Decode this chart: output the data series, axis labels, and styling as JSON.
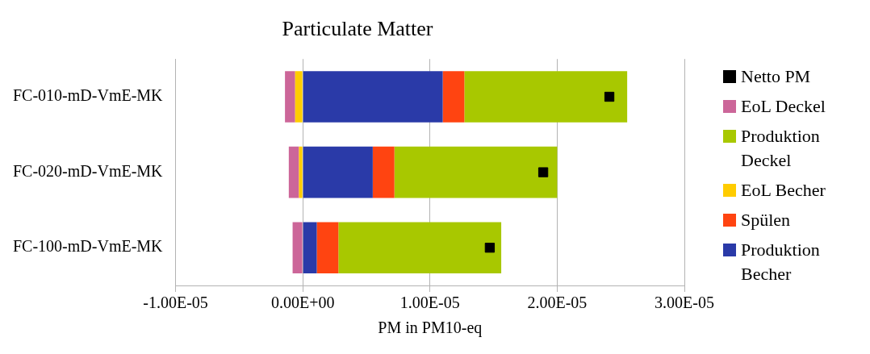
{
  "chart_data": {
    "type": "bar",
    "title": "Particulate Matter",
    "xlabel": "PM in PM10-eq",
    "orientation": "horizontal",
    "stacked": true,
    "grid": "x",
    "legend": "right",
    "categories": [
      "FC-010-mD-VmE-MK",
      "FC-020-mD-VmE-MK",
      "FC-100-mD-VmE-MK"
    ],
    "xlim": [
      -1e-05,
      3e-05
    ],
    "xticks": [
      {
        "value": -1e-05,
        "label": "-1.00E-05"
      },
      {
        "value": 0,
        "label": "0.00E+00"
      },
      {
        "value": 1e-05,
        "label": "1.00E-05"
      },
      {
        "value": 2e-05,
        "label": "2.00E-05"
      },
      {
        "value": 3e-05,
        "label": "3.00E-05"
      }
    ],
    "series": [
      {
        "name": "Netto PM",
        "type": "scatter",
        "marker": "square",
        "color": "#000000",
        "values": [
          2.41e-05,
          1.89e-05,
          1.47e-05
        ]
      },
      {
        "name": "EoL Deckel",
        "color": "#cc6699",
        "values": [
          -8e-07,
          -8e-07,
          -8e-07
        ]
      },
      {
        "name": "Produktion Deckel",
        "color": "#a8c800",
        "values": [
          1.28e-05,
          1.28e-05,
          1.28e-05
        ]
      },
      {
        "name": "EoL Becher",
        "color": "#ffcc00",
        "values": [
          -6e-07,
          -3e-07,
          null
        ]
      },
      {
        "name": "Spülen",
        "color": "#ff4411",
        "values": [
          1.7e-06,
          1.7e-06,
          1.7e-06
        ]
      },
      {
        "name": "Produktion Becher",
        "color": "#2a3aa8",
        "values": [
          1.1e-05,
          5.5e-06,
          1.1e-06
        ]
      }
    ]
  }
}
